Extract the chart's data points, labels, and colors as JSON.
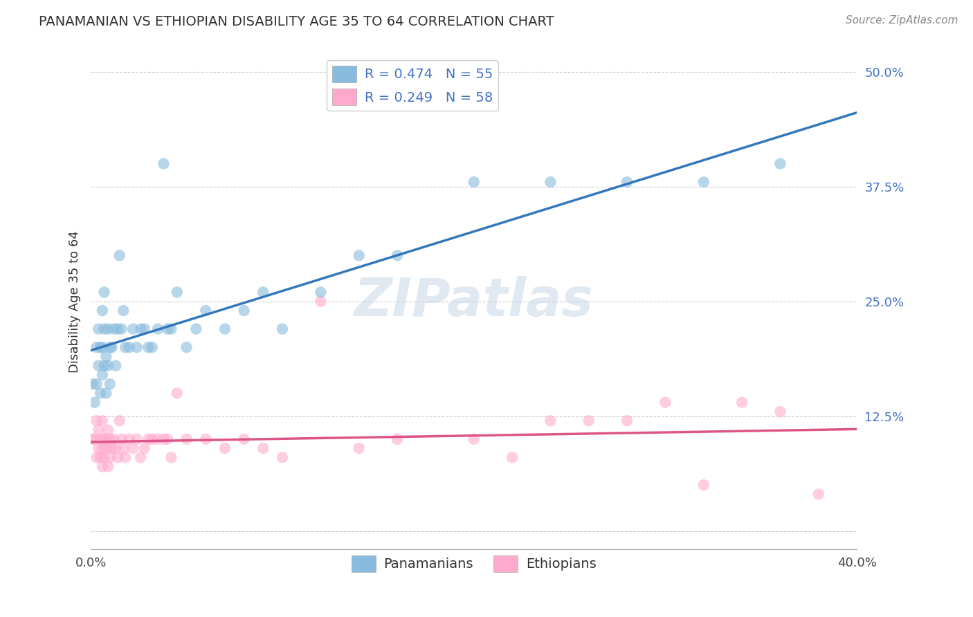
{
  "title": "PANAMANIAN VS ETHIOPIAN DISABILITY AGE 35 TO 64 CORRELATION CHART",
  "source": "Source: ZipAtlas.com",
  "ylabel": "Disability Age 35 to 64",
  "legend_label_1": "Panamanians",
  "legend_label_2": "Ethiopians",
  "r1": 0.474,
  "n1": 55,
  "r2": 0.249,
  "n2": 58,
  "color_blue": "#88bbdd",
  "color_pink": "#ffaacc",
  "line_color_blue": "#3377bb",
  "line_color_pink": "#dd5588",
  "xlim": [
    0.0,
    0.4
  ],
  "ylim": [
    -0.02,
    0.52
  ],
  "xtick_positions": [
    0.0,
    0.4
  ],
  "xtick_labels": [
    "0.0%",
    "40.0%"
  ],
  "ytick_positions": [
    0.0,
    0.125,
    0.25,
    0.375,
    0.5
  ],
  "ytick_labels": [
    "",
    "12.5%",
    "25.0%",
    "37.5%",
    "50.0%"
  ],
  "watermark": "ZIPatlas",
  "background_color": "#ffffff",
  "grid_color": "#cccccc",
  "blue_x": [
    0.001,
    0.002,
    0.003,
    0.003,
    0.004,
    0.004,
    0.005,
    0.005,
    0.006,
    0.006,
    0.006,
    0.007,
    0.007,
    0.007,
    0.008,
    0.008,
    0.009,
    0.009,
    0.01,
    0.01,
    0.011,
    0.012,
    0.013,
    0.014,
    0.015,
    0.016,
    0.017,
    0.018,
    0.02,
    0.022,
    0.024,
    0.026,
    0.028,
    0.03,
    0.032,
    0.035,
    0.038,
    0.04,
    0.042,
    0.045,
    0.05,
    0.055,
    0.06,
    0.07,
    0.08,
    0.09,
    0.1,
    0.12,
    0.14,
    0.16,
    0.2,
    0.24,
    0.28,
    0.32,
    0.36
  ],
  "blue_y": [
    0.16,
    0.14,
    0.16,
    0.2,
    0.18,
    0.22,
    0.15,
    0.2,
    0.17,
    0.2,
    0.24,
    0.18,
    0.22,
    0.26,
    0.15,
    0.19,
    0.18,
    0.22,
    0.16,
    0.2,
    0.2,
    0.22,
    0.18,
    0.22,
    0.3,
    0.22,
    0.24,
    0.2,
    0.2,
    0.22,
    0.2,
    0.22,
    0.22,
    0.2,
    0.2,
    0.22,
    0.4,
    0.22,
    0.22,
    0.26,
    0.2,
    0.22,
    0.24,
    0.22,
    0.24,
    0.26,
    0.22,
    0.26,
    0.3,
    0.3,
    0.38,
    0.38,
    0.38,
    0.38,
    0.4
  ],
  "pink_x": [
    0.001,
    0.002,
    0.003,
    0.003,
    0.004,
    0.004,
    0.005,
    0.005,
    0.006,
    0.006,
    0.006,
    0.007,
    0.007,
    0.008,
    0.008,
    0.009,
    0.009,
    0.01,
    0.01,
    0.011,
    0.012,
    0.013,
    0.014,
    0.015,
    0.016,
    0.017,
    0.018,
    0.02,
    0.022,
    0.024,
    0.026,
    0.028,
    0.03,
    0.032,
    0.035,
    0.038,
    0.04,
    0.042,
    0.045,
    0.05,
    0.06,
    0.07,
    0.08,
    0.09,
    0.1,
    0.12,
    0.14,
    0.16,
    0.2,
    0.22,
    0.24,
    0.26,
    0.28,
    0.3,
    0.32,
    0.34,
    0.36,
    0.38
  ],
  "pink_y": [
    0.1,
    0.1,
    0.08,
    0.12,
    0.09,
    0.11,
    0.1,
    0.08,
    0.09,
    0.12,
    0.07,
    0.1,
    0.08,
    0.1,
    0.09,
    0.11,
    0.07,
    0.1,
    0.08,
    0.09,
    0.1,
    0.09,
    0.08,
    0.12,
    0.1,
    0.09,
    0.08,
    0.1,
    0.09,
    0.1,
    0.08,
    0.09,
    0.1,
    0.1,
    0.1,
    0.1,
    0.1,
    0.08,
    0.15,
    0.1,
    0.1,
    0.09,
    0.1,
    0.09,
    0.08,
    0.25,
    0.09,
    0.1,
    0.1,
    0.08,
    0.12,
    0.12,
    0.12,
    0.14,
    0.05,
    0.14,
    0.13,
    0.04
  ]
}
